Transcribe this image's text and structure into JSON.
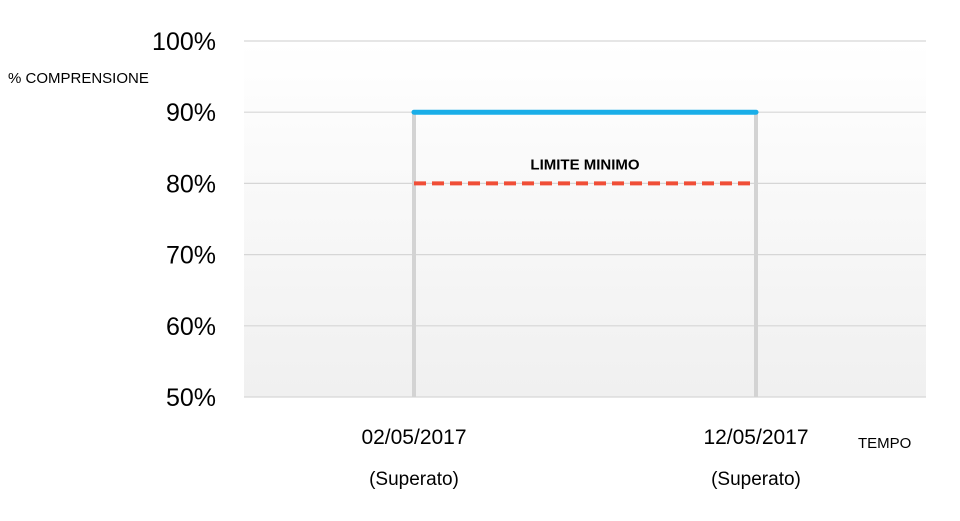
{
  "chart_data": {
    "type": "line",
    "title": "",
    "ylabel": "% COMPRENSIONE",
    "xlabel": "TEMPO",
    "ylim": [
      50,
      100
    ],
    "yticks": [
      "100%",
      "90%",
      "80%",
      "70%",
      "60%",
      "50%"
    ],
    "categories": [
      "02/05/2017",
      "12/05/2017"
    ],
    "category_sublabels": [
      "(Superato)",
      "(Superato)"
    ],
    "series": [
      {
        "values": [
          90,
          90
        ],
        "color": "#1aaee8",
        "style": "solid"
      }
    ],
    "reference_lines": [
      {
        "label": "LIMITE MINIMO",
        "values": [
          80,
          80
        ],
        "color": "#f04e37",
        "style": "dashed"
      }
    ],
    "grid": true
  }
}
